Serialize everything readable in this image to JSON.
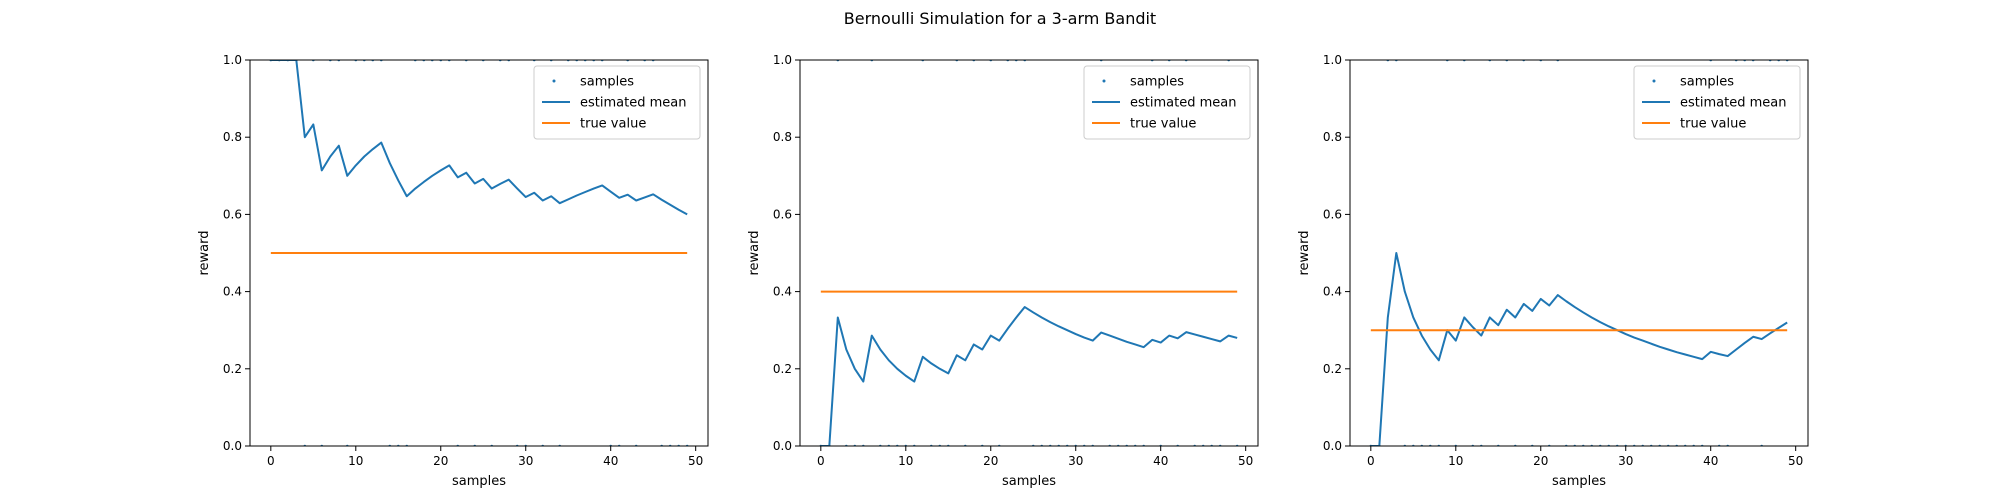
{
  "figure": {
    "suptitle": "Bernoulli Simulation for a 3-arm Bandit"
  },
  "colors": {
    "samples": "#1f77b4",
    "estimated_mean": "#1f77b4",
    "true_value": "#ff7f0e",
    "axes": "#000000",
    "legend_border": "#cccccc"
  },
  "chart_data": [
    {
      "type": "line",
      "xlabel": "samples",
      "ylabel": "reward",
      "xlim": [
        -2.45,
        51.45
      ],
      "ylim": [
        0.0,
        1.0
      ],
      "xticks": [
        0,
        10,
        20,
        30,
        40,
        50
      ],
      "yticks": [
        0.0,
        0.2,
        0.4,
        0.6,
        0.8,
        1.0
      ],
      "xtick_labels": [
        "0",
        "10",
        "20",
        "30",
        "40",
        "50"
      ],
      "ytick_labels": [
        "0.0",
        "0.2",
        "0.4",
        "0.6",
        "0.8",
        "1.0"
      ],
      "legend": {
        "placement": "top-right",
        "entries": [
          "samples",
          "estimated mean",
          "true value"
        ]
      },
      "series": [
        {
          "name": "samples",
          "kind": "scatter",
          "x": [
            0,
            1,
            2,
            3,
            4,
            5,
            6,
            7,
            8,
            9,
            10,
            11,
            12,
            13,
            14,
            15,
            16,
            17,
            18,
            19,
            20,
            21,
            22,
            23,
            24,
            25,
            26,
            27,
            28,
            29,
            30,
            31,
            32,
            33,
            34,
            35,
            36,
            37,
            38,
            39,
            40,
            41,
            42,
            43,
            44,
            45,
            46,
            47,
            48,
            49
          ],
          "y": [
            1,
            1,
            1,
            1,
            0,
            1,
            0,
            1,
            1,
            0,
            1,
            1,
            1,
            1,
            0,
            0,
            0,
            1,
            1,
            1,
            1,
            1,
            0,
            1,
            0,
            1,
            0,
            1,
            1,
            0,
            0,
            1,
            0,
            1,
            0,
            1,
            1,
            1,
            1,
            1,
            0,
            0,
            1,
            0,
            1,
            1,
            0,
            0,
            0,
            0
          ]
        },
        {
          "name": "estimated mean",
          "kind": "line",
          "x": [
            0,
            1,
            2,
            3,
            4,
            5,
            6,
            7,
            8,
            9,
            10,
            11,
            12,
            13,
            14,
            15,
            16,
            17,
            18,
            19,
            20,
            21,
            22,
            23,
            24,
            25,
            26,
            27,
            28,
            29,
            30,
            31,
            32,
            33,
            34,
            35,
            36,
            37,
            38,
            39,
            40,
            41,
            42,
            43,
            44,
            45,
            46,
            47,
            48,
            49
          ],
          "y": [
            1.0,
            1.0,
            1.0,
            1.0,
            0.8,
            0.833,
            0.714,
            0.75,
            0.778,
            0.7,
            0.727,
            0.75,
            0.769,
            0.786,
            0.733,
            0.688,
            0.647,
            0.667,
            0.684,
            0.7,
            0.714,
            0.727,
            0.696,
            0.708,
            0.68,
            0.692,
            0.667,
            0.679,
            0.69,
            0.667,
            0.645,
            0.656,
            0.636,
            0.647,
            0.629,
            0.639,
            0.649,
            0.658,
            0.667,
            0.675,
            0.659,
            0.643,
            0.651,
            0.636,
            0.644,
            0.652,
            0.638,
            0.625,
            0.612,
            0.6
          ]
        },
        {
          "name": "true value",
          "kind": "line",
          "x": [
            0,
            49
          ],
          "y": [
            0.5,
            0.5
          ]
        }
      ]
    },
    {
      "type": "line",
      "xlabel": "samples",
      "ylabel": "reward",
      "xlim": [
        -2.45,
        51.45
      ],
      "ylim": [
        0.0,
        1.0
      ],
      "xticks": [
        0,
        10,
        20,
        30,
        40,
        50
      ],
      "yticks": [
        0.0,
        0.2,
        0.4,
        0.6,
        0.8,
        1.0
      ],
      "xtick_labels": [
        "0",
        "10",
        "20",
        "30",
        "40",
        "50"
      ],
      "ytick_labels": [
        "0.0",
        "0.2",
        "0.4",
        "0.6",
        "0.8",
        "1.0"
      ],
      "legend": {
        "placement": "top-right",
        "entries": [
          "samples",
          "estimated mean",
          "true value"
        ]
      },
      "series": [
        {
          "name": "samples",
          "kind": "scatter",
          "x": [
            0,
            1,
            2,
            3,
            4,
            5,
            6,
            7,
            8,
            9,
            10,
            11,
            12,
            13,
            14,
            15,
            16,
            17,
            18,
            19,
            20,
            21,
            22,
            23,
            24,
            25,
            26,
            27,
            28,
            29,
            30,
            31,
            32,
            33,
            34,
            35,
            36,
            37,
            38,
            39,
            40,
            41,
            42,
            43,
            44,
            45,
            46,
            47,
            48,
            49
          ],
          "y": [
            0,
            0,
            1,
            0,
            0,
            0,
            1,
            0,
            0,
            0,
            0,
            0,
            1,
            0,
            0,
            0,
            1,
            0,
            1,
            0,
            1,
            0,
            1,
            1,
            1,
            0,
            0,
            0,
            0,
            0,
            0,
            0,
            0,
            1,
            0,
            0,
            0,
            0,
            0,
            1,
            0,
            1,
            0,
            1,
            0,
            0,
            0,
            0,
            1,
            0
          ]
        },
        {
          "name": "estimated mean",
          "kind": "line",
          "x": [
            0,
            1,
            2,
            3,
            4,
            5,
            6,
            7,
            8,
            9,
            10,
            11,
            12,
            13,
            14,
            15,
            16,
            17,
            18,
            19,
            20,
            21,
            22,
            23,
            24,
            25,
            26,
            27,
            28,
            29,
            30,
            31,
            32,
            33,
            34,
            35,
            36,
            37,
            38,
            39,
            40,
            41,
            42,
            43,
            44,
            45,
            46,
            47,
            48,
            49
          ],
          "y": [
            0.0,
            0.0,
            0.333,
            0.25,
            0.2,
            0.167,
            0.286,
            0.25,
            0.222,
            0.2,
            0.182,
            0.167,
            0.231,
            0.214,
            0.2,
            0.188,
            0.235,
            0.222,
            0.263,
            0.25,
            0.286,
            0.273,
            0.304,
            0.333,
            0.36,
            0.346,
            0.333,
            0.321,
            0.31,
            0.3,
            0.29,
            0.281,
            0.273,
            0.294,
            0.286,
            0.278,
            0.27,
            0.263,
            0.256,
            0.275,
            0.268,
            0.286,
            0.279,
            0.295,
            0.289,
            0.283,
            0.277,
            0.271,
            0.286,
            0.28
          ]
        },
        {
          "name": "true value",
          "kind": "line",
          "x": [
            0,
            49
          ],
          "y": [
            0.4,
            0.4
          ]
        }
      ]
    },
    {
      "type": "line",
      "xlabel": "samples",
      "ylabel": "reward",
      "xlim": [
        -2.45,
        51.45
      ],
      "ylim": [
        0.0,
        1.0
      ],
      "xticks": [
        0,
        10,
        20,
        30,
        40,
        50
      ],
      "yticks": [
        0.0,
        0.2,
        0.4,
        0.6,
        0.8,
        1.0
      ],
      "xtick_labels": [
        "0",
        "10",
        "20",
        "30",
        "40",
        "50"
      ],
      "ytick_labels": [
        "0.0",
        "0.2",
        "0.4",
        "0.6",
        "0.8",
        "1.0"
      ],
      "legend": {
        "placement": "top-right",
        "entries": [
          "samples",
          "estimated mean",
          "true value"
        ]
      },
      "series": [
        {
          "name": "samples",
          "kind": "scatter",
          "x": [
            0,
            1,
            2,
            3,
            4,
            5,
            6,
            7,
            8,
            9,
            10,
            11,
            12,
            13,
            14,
            15,
            16,
            17,
            18,
            19,
            20,
            21,
            22,
            23,
            24,
            25,
            26,
            27,
            28,
            29,
            30,
            31,
            32,
            33,
            34,
            35,
            36,
            37,
            38,
            39,
            40,
            41,
            42,
            43,
            44,
            45,
            46,
            47,
            48,
            49
          ],
          "y": [
            0,
            0,
            1,
            1,
            0,
            0,
            0,
            0,
            0,
            1,
            0,
            1,
            0,
            0,
            1,
            0,
            1,
            0,
            1,
            0,
            1,
            0,
            1,
            0,
            0,
            0,
            0,
            0,
            0,
            0,
            0,
            0,
            0,
            0,
            0,
            0,
            0,
            0,
            0,
            0,
            1,
            0,
            0,
            1,
            1,
            1,
            0,
            1,
            1,
            1
          ]
        },
        {
          "name": "estimated mean",
          "kind": "line",
          "x": [
            0,
            1,
            2,
            3,
            4,
            5,
            6,
            7,
            8,
            9,
            10,
            11,
            12,
            13,
            14,
            15,
            16,
            17,
            18,
            19,
            20,
            21,
            22,
            23,
            24,
            25,
            26,
            27,
            28,
            29,
            30,
            31,
            32,
            33,
            34,
            35,
            36,
            37,
            38,
            39,
            40,
            41,
            42,
            43,
            44,
            45,
            46,
            47,
            48,
            49
          ],
          "y": [
            0.0,
            0.0,
            0.333,
            0.5,
            0.4,
            0.333,
            0.286,
            0.25,
            0.222,
            0.3,
            0.273,
            0.333,
            0.308,
            0.286,
            0.333,
            0.313,
            0.353,
            0.333,
            0.368,
            0.35,
            0.381,
            0.364,
            0.391,
            0.375,
            0.36,
            0.346,
            0.333,
            0.321,
            0.31,
            0.3,
            0.29,
            0.281,
            0.273,
            0.265,
            0.257,
            0.25,
            0.243,
            0.237,
            0.231,
            0.225,
            0.244,
            0.238,
            0.233,
            0.25,
            0.267,
            0.283,
            0.277,
            0.292,
            0.306,
            0.32
          ]
        },
        {
          "name": "true value",
          "kind": "line",
          "x": [
            0,
            49
          ],
          "y": [
            0.3,
            0.3
          ]
        }
      ]
    }
  ]
}
